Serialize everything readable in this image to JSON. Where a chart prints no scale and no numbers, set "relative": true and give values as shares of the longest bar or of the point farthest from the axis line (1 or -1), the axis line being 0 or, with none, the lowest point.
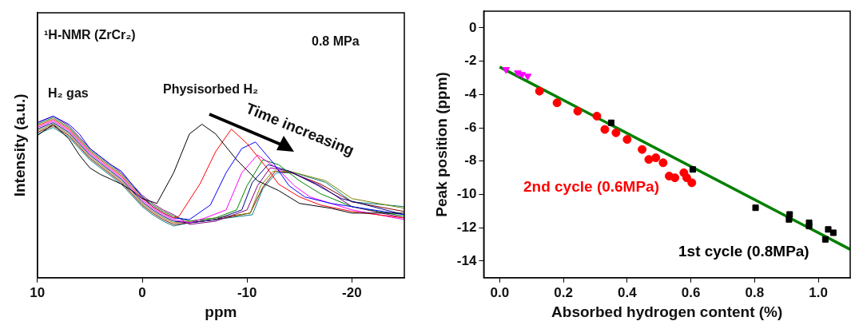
{
  "chart_data": [
    {
      "type": "line",
      "relative": true,
      "xlabel": "ppm",
      "ylabel": "Intensity (a.u.)",
      "xlim": [
        10,
        -25
      ],
      "xticks": [
        10,
        0,
        -10,
        -20
      ],
      "tick_labels": "x",
      "marker": "none",
      "line_style": "solid",
      "annotations": [
        "¹H-NMR (ZrCr₂)",
        "0.8 MPa",
        "H₂ gas",
        "Physisorbed H₂",
        "Time increasing"
      ],
      "series": [
        {
          "color": "#000000",
          "x": [
            10,
            8.5,
            7,
            6,
            5,
            4,
            3,
            2,
            1,
            0,
            -1.4,
            -3,
            -4.5,
            -5.7,
            -7,
            -9,
            -11,
            -13,
            -15,
            -18,
            -20,
            -25
          ],
          "values": [
            0.88,
            0.95,
            0.86,
            0.76,
            0.68,
            0.64,
            0.61,
            0.58,
            0.54,
            0.49,
            0.46,
            0.65,
            0.89,
            0.95,
            0.89,
            0.73,
            0.6,
            0.54,
            0.46,
            0.43,
            0.4,
            0.4
          ]
        },
        {
          "color": "#ff0000",
          "x": [
            10,
            8.5,
            7,
            6,
            5,
            4,
            3,
            2,
            1,
            0,
            -1,
            -2,
            -3,
            -3.5,
            -5.5,
            -7,
            -8.5,
            -10,
            -12,
            -13,
            -15,
            -17,
            -20,
            -25
          ],
          "values": [
            0.94,
            0.98,
            0.92,
            0.85,
            0.78,
            0.73,
            0.68,
            0.63,
            0.56,
            0.49,
            0.44,
            0.4,
            0.37,
            0.38,
            0.58,
            0.78,
            0.92,
            0.83,
            0.67,
            0.58,
            0.5,
            0.45,
            0.41,
            0.37
          ]
        },
        {
          "color": "#0000ff",
          "x": [
            10,
            8.5,
            7,
            6,
            5,
            4,
            3,
            2,
            1,
            0,
            -1,
            -2,
            -3,
            -4.5,
            -6.5,
            -8,
            -9.5,
            -10.8,
            -12.5,
            -14,
            -15.5,
            -18,
            -25
          ],
          "values": [
            0.96,
            1,
            0.95,
            0.89,
            0.8,
            0.75,
            0.7,
            0.66,
            0.58,
            0.5,
            0.44,
            0.4,
            0.37,
            0.36,
            0.45,
            0.65,
            0.8,
            0.84,
            0.71,
            0.57,
            0.5,
            0.46,
            0.39
          ]
        },
        {
          "color": "#ff00ff",
          "x": [
            10,
            8.5,
            7,
            6,
            5,
            4,
            3,
            2,
            1,
            0,
            -1,
            -2,
            -3,
            -4.5,
            -6,
            -8,
            -9.5,
            -11,
            -13,
            -14.5,
            -16,
            -20,
            -25
          ],
          "values": [
            0.93,
            0.97,
            0.91,
            0.84,
            0.77,
            0.72,
            0.67,
            0.62,
            0.55,
            0.48,
            0.43,
            0.39,
            0.36,
            0.34,
            0.37,
            0.42,
            0.65,
            0.76,
            0.67,
            0.57,
            0.5,
            0.42,
            0.36
          ]
        },
        {
          "color": "#008000",
          "x": [
            10,
            8.5,
            7,
            6,
            5,
            4,
            3,
            2,
            1,
            0,
            -1,
            -2,
            -3,
            -4.5,
            -7,
            -9,
            -10,
            -11.5,
            -13,
            -15,
            -17,
            -20,
            -25
          ],
          "values": [
            0.95,
            0.99,
            0.93,
            0.86,
            0.79,
            0.74,
            0.69,
            0.64,
            0.57,
            0.5,
            0.45,
            0.41,
            0.38,
            0.35,
            0.37,
            0.42,
            0.57,
            0.73,
            0.7,
            0.6,
            0.52,
            0.44,
            0.38
          ]
        },
        {
          "color": "#000080",
          "x": [
            10,
            8.5,
            7,
            6,
            5,
            4,
            3,
            2,
            1,
            0,
            -1,
            -2,
            -3,
            -4.5,
            -7,
            -9.5,
            -10.5,
            -12,
            -14,
            -16.5,
            -19,
            -25
          ],
          "values": [
            0.92,
            0.96,
            0.9,
            0.83,
            0.76,
            0.71,
            0.66,
            0.61,
            0.54,
            0.47,
            0.42,
            0.38,
            0.35,
            0.34,
            0.36,
            0.42,
            0.59,
            0.7,
            0.66,
            0.58,
            0.49,
            0.39
          ]
        },
        {
          "color": "#800080",
          "x": [
            10,
            8.5,
            7,
            6,
            5,
            4,
            3,
            2,
            1,
            0,
            -1,
            -2,
            -3,
            -4.5,
            -7,
            -10,
            -11,
            -12.2,
            -14,
            -17,
            -20,
            -25
          ],
          "values": [
            0.96,
            1,
            0.94,
            0.87,
            0.8,
            0.75,
            0.7,
            0.65,
            0.58,
            0.51,
            0.46,
            0.42,
            0.39,
            0.33,
            0.35,
            0.42,
            0.57,
            0.68,
            0.66,
            0.57,
            0.44,
            0.37
          ]
        },
        {
          "color": "#808000",
          "x": [
            10,
            8.5,
            7,
            6,
            5,
            4,
            3,
            2,
            1,
            0,
            -1,
            -2,
            -3,
            -4.5,
            -7,
            -10.3,
            -11.3,
            -12.5,
            -14,
            -17.5,
            -20,
            -25
          ],
          "values": [
            0.91,
            0.95,
            0.89,
            0.82,
            0.75,
            0.7,
            0.65,
            0.6,
            0.53,
            0.46,
            0.41,
            0.37,
            0.34,
            0.35,
            0.37,
            0.4,
            0.57,
            0.66,
            0.66,
            0.6,
            0.49,
            0.43
          ]
        },
        {
          "color": "#800000",
          "x": [
            10,
            8.5,
            7,
            6,
            5,
            4,
            3,
            2,
            1,
            0,
            -1,
            -2,
            -3,
            -4.5,
            -7,
            -10.3,
            -11.5,
            -12.7,
            -14.2,
            -17,
            -20,
            -25
          ],
          "values": [
            0.9,
            0.94,
            0.88,
            0.81,
            0.74,
            0.69,
            0.64,
            0.59,
            0.52,
            0.45,
            0.4,
            0.36,
            0.33,
            0.34,
            0.36,
            0.4,
            0.56,
            0.66,
            0.65,
            0.58,
            0.47,
            0.41
          ]
        },
        {
          "color": "#008080",
          "x": [
            10,
            8.5,
            7,
            6,
            5,
            4,
            3,
            2,
            1,
            0,
            -1,
            -2,
            -3,
            -4.5,
            -7,
            -10.5,
            -11.5,
            -12.8,
            -14.5,
            -17.5,
            -20,
            -25
          ],
          "values": [
            0.89,
            0.93,
            0.87,
            0.8,
            0.73,
            0.68,
            0.63,
            0.58,
            0.51,
            0.44,
            0.39,
            0.35,
            0.32,
            0.34,
            0.36,
            0.39,
            0.55,
            0.65,
            0.65,
            0.59,
            0.47,
            0.44
          ]
        }
      ]
    },
    {
      "type": "scatter",
      "xlabel": "Absorbed hydrogen content (%)",
      "ylabel": "Peak position (ppm)",
      "xlim": [
        -0.05,
        1.1
      ],
      "xticks": [
        {
          "value": 0,
          "label": "0.0"
        },
        0.2,
        0.4,
        0.6,
        0.8,
        {
          "value": 1,
          "label": "1.0"
        }
      ],
      "ylim": [
        -15,
        1
      ],
      "yticks": [
        0,
        -2,
        -4,
        -6,
        -8,
        -10,
        -12,
        -14
      ],
      "series": [
        {
          "name": "2nd cycle (0.6MPa)",
          "color": "#ff0000",
          "marker": "circle",
          "x": [
            0.125,
            0.18,
            0.245,
            0.305,
            0.33,
            0.365,
            0.4,
            0.447,
            0.468,
            0.49,
            0.513,
            0.532,
            0.55,
            0.578,
            0.587,
            0.603
          ],
          "values": [
            -3.8,
            -4.5,
            -5,
            -5.3,
            -6.1,
            -6.3,
            -6.7,
            -7.3,
            -7.9,
            -7.8,
            -8.1,
            -8.9,
            -9,
            -8.7,
            -9,
            -9.3
          ]
        },
        {
          "name": "1st cycle (0.8MPa)",
          "color": "#000000",
          "marker": "square",
          "x": [
            0.35,
            0.606,
            0.803,
            0.91,
            0.908,
            0.971,
            0.971,
            1.022,
            1.031,
            1.047
          ],
          "values": [
            -5.7,
            -8.5,
            -10.8,
            -11.2,
            -11.5,
            -11.7,
            -11.9,
            -12.7,
            -12.1,
            -12.3
          ]
        },
        {
          "color": "#ff00ff",
          "marker": "triangle",
          "x": [
            0.02,
            0.057,
            0.07,
            0.088
          ],
          "values": [
            -2.5,
            -2.7,
            -2.8,
            -2.9
          ]
        },
        {
          "type": "line",
          "color": "#008000",
          "marker": "none",
          "line_style": "solid",
          "x": [
            0,
            1.1
          ],
          "values": [
            -2.35,
            -13.3
          ]
        }
      ]
    }
  ]
}
